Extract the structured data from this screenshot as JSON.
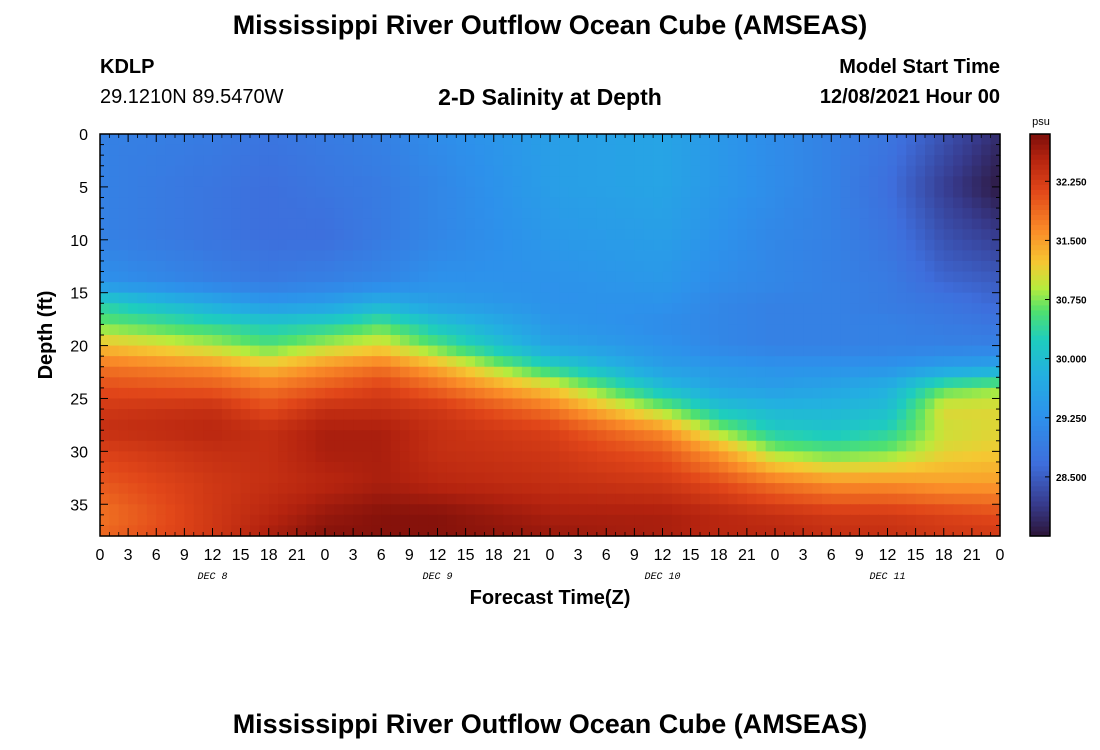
{
  "header": {
    "title": "Mississippi River Outflow Ocean Cube (AMSEAS)",
    "station_id": "KDLP",
    "station_coords": "29.1210N  89.5470W",
    "plot_subtitle": "2-D Salinity at Depth",
    "model_start_label": "Model Start Time",
    "model_start_value": "12/08/2021 Hour 00"
  },
  "footer": {
    "repeat_title": "Mississippi River Outflow Ocean Cube (AMSEAS)"
  },
  "chart_data": {
    "type": "heatmap",
    "title": "2-D Salinity at Depth",
    "xlabel": "Forecast Time(Z)",
    "ylabel": "Depth (ft)",
    "xlim": [
      0,
      96
    ],
    "ylim": [
      0,
      38
    ],
    "y_inverted": true,
    "x_tick_labels": [
      "0",
      "3",
      "6",
      "9",
      "12",
      "15",
      "18",
      "21",
      "0",
      "3",
      "6",
      "9",
      "12",
      "15",
      "18",
      "21",
      "0",
      "3",
      "6",
      "9",
      "12",
      "15",
      "18",
      "21",
      "0",
      "3",
      "6",
      "9",
      "12",
      "15",
      "18",
      "21",
      "0"
    ],
    "y_ticks": [
      0,
      5,
      10,
      15,
      20,
      25,
      30,
      35
    ],
    "day_labels": [
      {
        "label": "DEC 8",
        "hour": 12
      },
      {
        "label": "DEC 9",
        "hour": 36
      },
      {
        "label": "DEC 10",
        "hour": 60
      },
      {
        "label": "DEC 11",
        "hour": 84
      }
    ],
    "colorbar": {
      "unit": "psu",
      "min": 27.75,
      "max": 32.85,
      "tick_labels": [
        "28.500",
        "29.250",
        "30.000",
        "30.750",
        "31.500",
        "32.250"
      ],
      "tick_values": [
        28.5,
        29.25,
        30.0,
        30.75,
        31.5,
        32.25
      ]
    },
    "hours": [
      0,
      12,
      18,
      24,
      30,
      36,
      48,
      60,
      66,
      72,
      78,
      84,
      90,
      96
    ],
    "depths": [
      0,
      5,
      10,
      14,
      16,
      18,
      20,
      22,
      24,
      26,
      28,
      30,
      33,
      36,
      38
    ],
    "salinity": [
      [
        29.0,
        28.9,
        28.8,
        28.9,
        29.0,
        29.2,
        29.5,
        29.6,
        29.4,
        29.2,
        29.0,
        28.8,
        28.4,
        28.0
      ],
      [
        29.0,
        28.8,
        28.7,
        28.8,
        28.9,
        29.1,
        29.5,
        29.6,
        29.4,
        29.2,
        29.0,
        28.7,
        28.2,
        27.8
      ],
      [
        29.0,
        28.8,
        28.7,
        28.7,
        28.9,
        29.1,
        29.4,
        29.5,
        29.3,
        29.1,
        29.0,
        28.8,
        28.4,
        28.2
      ],
      [
        29.3,
        29.0,
        28.9,
        29.0,
        29.1,
        29.3,
        29.3,
        29.4,
        29.2,
        29.1,
        29.0,
        28.9,
        28.6,
        28.5
      ],
      [
        30.3,
        29.7,
        29.4,
        29.5,
        29.8,
        29.5,
        29.3,
        29.3,
        29.1,
        29.0,
        29.0,
        28.9,
        28.8,
        28.6
      ],
      [
        30.7,
        30.4,
        30.2,
        30.3,
        30.6,
        30.1,
        29.4,
        29.2,
        29.1,
        29.0,
        29.0,
        29.0,
        28.9,
        28.8
      ],
      [
        31.3,
        30.9,
        30.6,
        30.9,
        31.1,
        30.6,
        29.6,
        29.3,
        29.1,
        29.0,
        29.0,
        29.0,
        29.0,
        29.0
      ],
      [
        31.8,
        31.6,
        31.3,
        31.6,
        31.8,
        31.4,
        30.3,
        29.5,
        29.4,
        29.3,
        29.3,
        29.3,
        29.5,
        29.6
      ],
      [
        32.1,
        32.0,
        31.8,
        32.0,
        32.2,
        31.9,
        31.2,
        30.0,
        29.6,
        29.5,
        29.6,
        29.8,
        30.6,
        30.8
      ],
      [
        32.3,
        32.4,
        32.1,
        32.4,
        32.4,
        32.3,
        31.8,
        30.8,
        30.1,
        29.9,
        29.9,
        30.0,
        31.1,
        31.1
      ],
      [
        32.4,
        32.5,
        32.4,
        32.6,
        32.6,
        32.4,
        32.2,
        31.6,
        30.8,
        30.2,
        30.1,
        30.3,
        31.0,
        31.1
      ],
      [
        32.2,
        32.4,
        32.4,
        32.6,
        32.6,
        32.4,
        32.3,
        32.0,
        31.5,
        30.8,
        30.6,
        30.7,
        31.1,
        31.2
      ],
      [
        32.0,
        32.3,
        32.4,
        32.5,
        32.6,
        32.5,
        32.4,
        32.3,
        32.1,
        31.8,
        31.6,
        31.6,
        31.5,
        31.5
      ],
      [
        31.8,
        32.3,
        32.5,
        32.7,
        32.8,
        32.8,
        32.6,
        32.6,
        32.5,
        32.4,
        32.3,
        32.3,
        32.2,
        32.1
      ],
      [
        31.9,
        32.3,
        32.6,
        32.8,
        32.8,
        32.8,
        32.7,
        32.6,
        32.5,
        32.5,
        32.4,
        32.4,
        32.3,
        32.3
      ]
    ]
  }
}
